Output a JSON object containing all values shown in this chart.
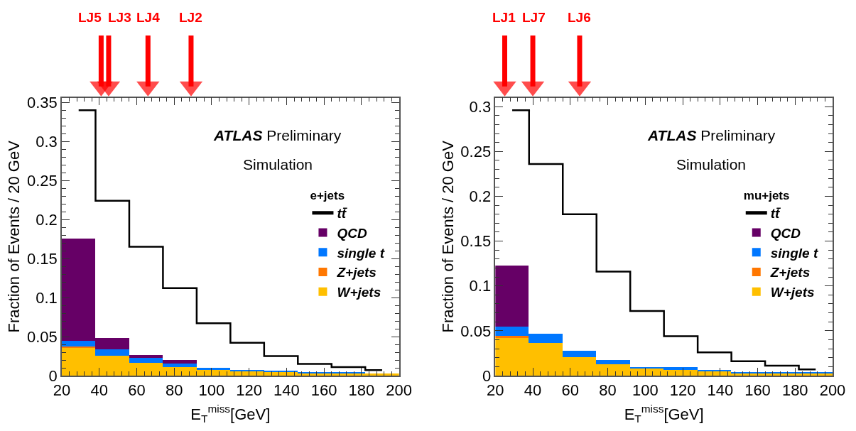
{
  "chart_data": [
    {
      "type": "bar",
      "xlabel": "E$_{T}$$^{miss}$[GeV]",
      "ylabel": "Fraction of Events / 20 GeV",
      "legend_title": "e+jets",
      "legend": "right",
      "stacked": true,
      "x": [
        29,
        47,
        65,
        83,
        101,
        119,
        137,
        155,
        173,
        191
      ],
      "xlim": [
        20,
        200
      ],
      "xticks": [
        20,
        40,
        60,
        80,
        100,
        120,
        140,
        160,
        180,
        200
      ],
      "ylim": [
        0,
        0.356
      ],
      "yticks": [
        0,
        0.05,
        0.1,
        0.15,
        0.2,
        0.25,
        0.3,
        0.35
      ],
      "series": [
        {
          "name": "W+jets",
          "color": "#ffbf00",
          "values": [
            0.036,
            0.026,
            0.017,
            0.011,
            0.008,
            0.006,
            0.005,
            0.004,
            0.004,
            0.003
          ]
        },
        {
          "name": "Z+jets",
          "color": "#ff7700",
          "values": [
            0.002,
            null,
            null,
            0,
            0,
            0,
            0,
            0,
            0,
            0
          ]
        },
        {
          "name": "single t",
          "color": "#0077ff",
          "values": [
            0.007,
            0.008,
            0.006,
            0.005,
            0.002,
            0.001,
            0.001,
            0.001,
            0.001,
            0
          ]
        },
        {
          "name": "QCD",
          "color": "#660066",
          "values": [
            0.131,
            0.015,
            0.004,
            0.004,
            0,
            0,
            0,
            0,
            0,
            0
          ]
        },
        {
          "name": "tt̄",
          "type": "step",
          "color": "#000000",
          "values": [
            0.34,
            0.224,
            0.165,
            0.112,
            0.067,
            0.042,
            0.025,
            0.015,
            0.011,
            0.007
          ]
        }
      ],
      "annotations": [
        "ATLAS Preliminary",
        "Simulation"
      ],
      "ref_lines": [
        {
          "axis": "x",
          "value": 41,
          "label": "LJ5",
          "color": "#ff0000"
        },
        {
          "axis": "x",
          "value": 45,
          "label": "LJ3",
          "color": "#ff0000"
        },
        {
          "axis": "x",
          "value": 66,
          "label": "LJ4",
          "color": "#ff0000"
        },
        {
          "axis": "x",
          "value": 89,
          "label": "LJ2",
          "color": "#ff0000"
        }
      ]
    },
    {
      "type": "bar",
      "xlabel": "E$_{T}$$^{miss}$[GeV]",
      "ylabel": "Fraction of Events / 20 GeV",
      "legend_title": "mu+jets",
      "legend": "right",
      "stacked": true,
      "x": [
        29,
        47,
        65,
        83,
        101,
        119,
        137,
        155,
        173,
        191
      ],
      "xlim": [
        20,
        200
      ],
      "xticks": [
        20,
        40,
        60,
        80,
        100,
        120,
        140,
        160,
        180,
        200
      ],
      "ylim": [
        0,
        0.31
      ],
      "yticks": [
        0,
        0.05,
        0.1,
        0.15,
        0.2,
        0.25,
        0.3
      ],
      "series": [
        {
          "name": "W+jets",
          "color": "#ffbf00",
          "values": [
            0.042,
            0.037,
            0.021,
            0.013,
            0.008,
            0.007,
            0.005,
            0.003,
            0.003,
            0.003
          ]
        },
        {
          "name": "Z+jets",
          "color": "#ff7700",
          "values": [
            0.003,
            0,
            null,
            0,
            0,
            0,
            0,
            0,
            0,
            0
          ]
        },
        {
          "name": "single t",
          "color": "#0077ff",
          "values": [
            0.01,
            0.01,
            0.007,
            0.005,
            0.002,
            0.003,
            0.002,
            0.001,
            0.001,
            0.001
          ]
        },
        {
          "name": "QCD",
          "color": "#660066",
          "values": [
            0.068,
            0,
            0,
            0,
            0,
            0,
            0,
            0,
            0,
            0
          ]
        },
        {
          "name": "tt̄",
          "type": "step",
          "color": "#000000",
          "values": [
            0.296,
            0.236,
            0.18,
            0.116,
            0.072,
            0.044,
            0.026,
            0.016,
            0.011,
            0.007
          ]
        }
      ],
      "annotations": [
        "ATLAS Preliminary",
        "Simulation"
      ],
      "ref_lines": [
        {
          "axis": "x",
          "value": 25,
          "label": "LJ1",
          "color": "#ff0000"
        },
        {
          "axis": "x",
          "value": 40,
          "label": "LJ7",
          "color": "#ff0000"
        },
        {
          "axis": "x",
          "value": 65,
          "label": "LJ6",
          "color": "#ff0000"
        }
      ]
    }
  ]
}
